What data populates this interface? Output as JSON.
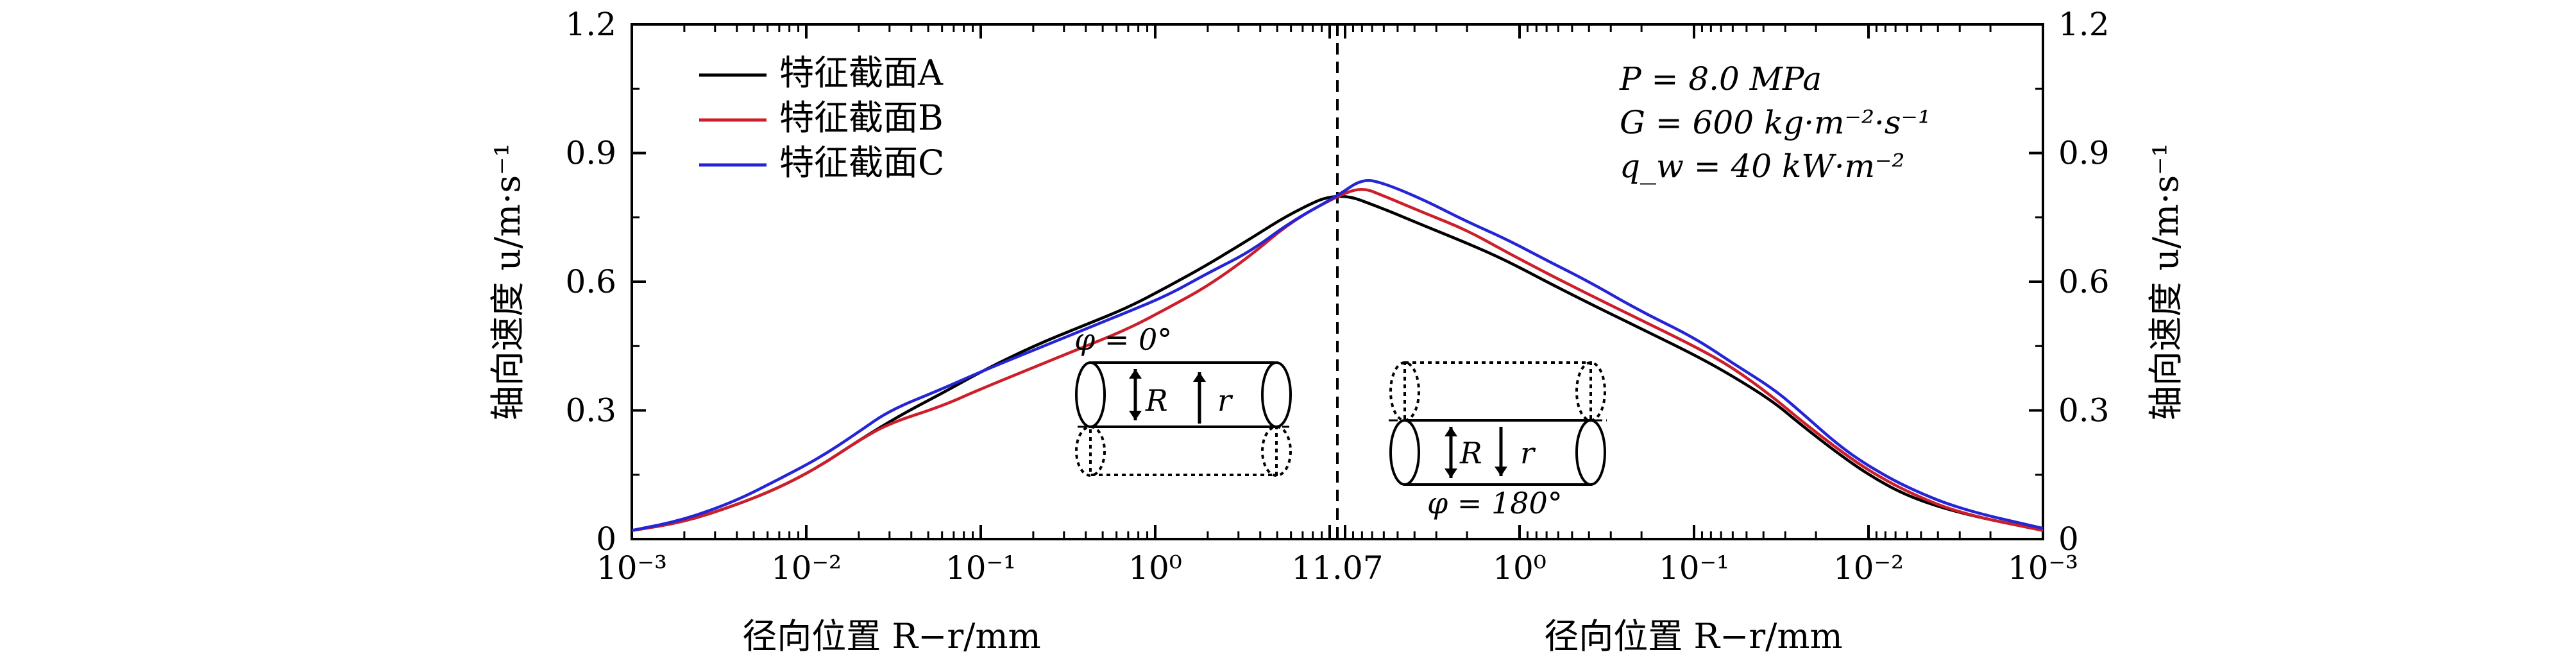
{
  "chart_data": {
    "type": "line",
    "x_scale": "log, mirrored about the tube center",
    "xlabel_left": "径向位置 R−r/mm",
    "xlabel_right": "径向位置 R−r/mm",
    "ylabel_left": "轴向速度 u/m·s⁻¹",
    "ylabel_right": "轴向速度 u/m·s⁻¹",
    "ylim": [
      0,
      1.2
    ],
    "y_ticks": [
      "0",
      "0.3",
      "0.6",
      "0.9",
      "1.2"
    ],
    "x_ticks_left": [
      {
        "value": 0.001,
        "label": "10⁻³"
      },
      {
        "value": 0.01,
        "label": "10⁻²"
      },
      {
        "value": 0.1,
        "label": "10⁻¹"
      },
      {
        "value": 1,
        "label": "10⁰"
      }
    ],
    "center_tick": {
      "value": 11.07,
      "label": "11.07"
    },
    "x_ticks_right": [
      {
        "value": 1,
        "label": "10⁰"
      },
      {
        "value": 0.1,
        "label": "10⁻¹"
      },
      {
        "value": 0.01,
        "label": "10⁻²"
      },
      {
        "value": 0.001,
        "label": "10⁻³"
      }
    ],
    "legend_position": "top-left",
    "series": [
      {
        "name": "特征截面A",
        "color": "#000000",
        "left": [
          [
            0.001,
            0.02
          ],
          [
            0.002,
            0.04
          ],
          [
            0.004,
            0.08
          ],
          [
            0.007,
            0.12
          ],
          [
            0.012,
            0.17
          ],
          [
            0.02,
            0.23
          ],
          [
            0.035,
            0.29
          ],
          [
            0.06,
            0.34
          ],
          [
            0.1,
            0.39
          ],
          [
            0.2,
            0.45
          ],
          [
            0.4,
            0.5
          ],
          [
            0.7,
            0.54
          ],
          [
            1.2,
            0.59
          ],
          [
            2,
            0.64
          ],
          [
            3.5,
            0.7
          ],
          [
            6,
            0.76
          ],
          [
            11.07,
            0.81
          ]
        ],
        "right": [
          [
            11.07,
            0.81
          ],
          [
            6,
            0.77
          ],
          [
            3.5,
            0.73
          ],
          [
            2,
            0.69
          ],
          [
            1.2,
            0.65
          ],
          [
            0.7,
            0.6
          ],
          [
            0.4,
            0.55
          ],
          [
            0.2,
            0.49
          ],
          [
            0.1,
            0.43
          ],
          [
            0.06,
            0.38
          ],
          [
            0.035,
            0.32
          ],
          [
            0.025,
            0.27
          ],
          [
            0.015,
            0.2
          ],
          [
            0.01,
            0.15
          ],
          [
            0.006,
            0.1
          ],
          [
            0.003,
            0.06
          ],
          [
            0.001,
            0.02
          ]
        ]
      },
      {
        "name": "特征截面B",
        "color": "#cc1f2b",
        "left": [
          [
            0.001,
            0.02
          ],
          [
            0.002,
            0.04
          ],
          [
            0.004,
            0.08
          ],
          [
            0.007,
            0.12
          ],
          [
            0.012,
            0.17
          ],
          [
            0.02,
            0.23
          ],
          [
            0.03,
            0.27
          ],
          [
            0.06,
            0.31
          ],
          [
            0.1,
            0.35
          ],
          [
            0.2,
            0.4
          ],
          [
            0.4,
            0.45
          ],
          [
            0.7,
            0.49
          ],
          [
            1.2,
            0.54
          ],
          [
            2,
            0.59
          ],
          [
            3.5,
            0.66
          ],
          [
            6,
            0.74
          ],
          [
            11.07,
            0.8
          ]
        ],
        "right": [
          [
            11.07,
            0.8
          ],
          [
            8,
            0.82
          ],
          [
            6,
            0.8
          ],
          [
            3.5,
            0.76
          ],
          [
            2,
            0.72
          ],
          [
            1.2,
            0.67
          ],
          [
            0.7,
            0.62
          ],
          [
            0.4,
            0.57
          ],
          [
            0.2,
            0.51
          ],
          [
            0.1,
            0.45
          ],
          [
            0.06,
            0.4
          ],
          [
            0.035,
            0.33
          ],
          [
            0.025,
            0.28
          ],
          [
            0.015,
            0.21
          ],
          [
            0.01,
            0.16
          ],
          [
            0.006,
            0.11
          ],
          [
            0.003,
            0.06
          ],
          [
            0.001,
            0.02
          ]
        ]
      },
      {
        "name": "特征截面C",
        "color": "#2525d6",
        "left": [
          [
            0.001,
            0.02
          ],
          [
            0.002,
            0.045
          ],
          [
            0.004,
            0.09
          ],
          [
            0.007,
            0.14
          ],
          [
            0.012,
            0.19
          ],
          [
            0.02,
            0.25
          ],
          [
            0.03,
            0.3
          ],
          [
            0.06,
            0.35
          ],
          [
            0.1,
            0.39
          ],
          [
            0.2,
            0.44
          ],
          [
            0.4,
            0.49
          ],
          [
            0.7,
            0.53
          ],
          [
            1.2,
            0.57
          ],
          [
            2,
            0.62
          ],
          [
            3.5,
            0.67
          ],
          [
            6,
            0.74
          ],
          [
            11.07,
            0.8
          ]
        ],
        "right": [
          [
            11.07,
            0.8
          ],
          [
            8,
            0.84
          ],
          [
            6,
            0.83
          ],
          [
            3.5,
            0.79
          ],
          [
            2,
            0.74
          ],
          [
            1.2,
            0.7
          ],
          [
            0.7,
            0.65
          ],
          [
            0.4,
            0.6
          ],
          [
            0.2,
            0.53
          ],
          [
            0.1,
            0.47
          ],
          [
            0.06,
            0.41
          ],
          [
            0.035,
            0.35
          ],
          [
            0.025,
            0.3
          ],
          [
            0.015,
            0.22
          ],
          [
            0.01,
            0.17
          ],
          [
            0.006,
            0.12
          ],
          [
            0.003,
            0.07
          ],
          [
            0.001,
            0.025
          ]
        ]
      }
    ],
    "annotations": {
      "p": "P = 8.0 MPa",
      "g": "G = 600 kg·m⁻²·s⁻¹",
      "q": "q_w = 40 kW·m⁻²",
      "phi0": "φ = 0°",
      "phi180": "φ = 180°",
      "tube_R": "R",
      "tube_r": "r"
    }
  }
}
